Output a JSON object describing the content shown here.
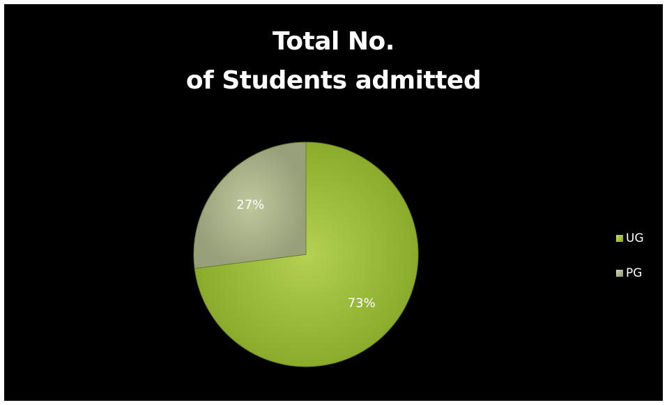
{
  "chart_data": {
    "type": "pie",
    "title_lines": [
      "Total No.",
      "of Students admitted"
    ],
    "categories": [
      "UG",
      "PG"
    ],
    "values": [
      73,
      27
    ],
    "data_labels": [
      "73%",
      "27%"
    ],
    "legend": {
      "position": "right",
      "entries": [
        "UG",
        "PG"
      ]
    },
    "colors": [
      "#9cbd3a",
      "#a4ad86"
    ]
  }
}
